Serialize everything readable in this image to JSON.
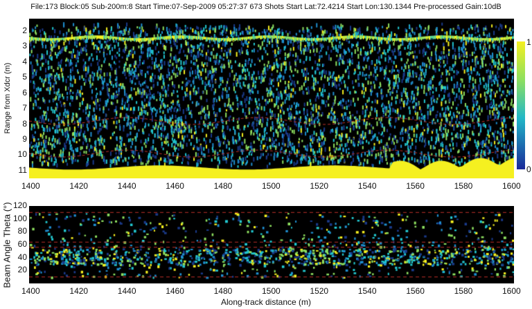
{
  "title": "File:173 Block:05 Sub-200m:8  Start Time:07-Sep-2009 05:27:37  673 Shots  Start Lat:72.4214 Start Lon:130.1344  Pre-processed Gain:10dB",
  "colors": {
    "background": "#000000",
    "low": "#1a3a8a",
    "mid": "#22b8c8",
    "high": "#f5f020",
    "guide_line": "#c0302a"
  },
  "chart_data": [
    {
      "type": "heatmap",
      "ylabel": "Range from Xdcr (m)",
      "xlabel": "",
      "xlim": [
        1400,
        1600
      ],
      "ylim": [
        11.5,
        1.2
      ],
      "xticks": [
        "1400",
        "1420",
        "1440",
        "1460",
        "1480",
        "1500",
        "1520",
        "1540",
        "1560",
        "1580",
        "1600"
      ],
      "yticks": [
        "2",
        "3",
        "4",
        "5",
        "6",
        "7",
        "8",
        "9",
        "10",
        "11"
      ],
      "colorbar": {
        "min_label": "0",
        "max_label": "1",
        "range": [
          0,
          1
        ]
      },
      "features": {
        "surface_band_range_m": 2.5,
        "bottom_range_m": 10.8
      }
    },
    {
      "type": "heatmap",
      "ylabel": "Beam Angle Theta (°)",
      "xlabel": "Along-track distance (m)",
      "xlim": [
        1400,
        1600
      ],
      "ylim": [
        0,
        120
      ],
      "xticks": [
        "1400",
        "1420",
        "1440",
        "1460",
        "1480",
        "1500",
        "1520",
        "1540",
        "1560",
        "1580",
        "1600"
      ],
      "yticks": [
        "20",
        "40",
        "60",
        "80",
        "100",
        "120"
      ],
      "guide_lines_deg": [
        110,
        64,
        56,
        10
      ]
    }
  ]
}
